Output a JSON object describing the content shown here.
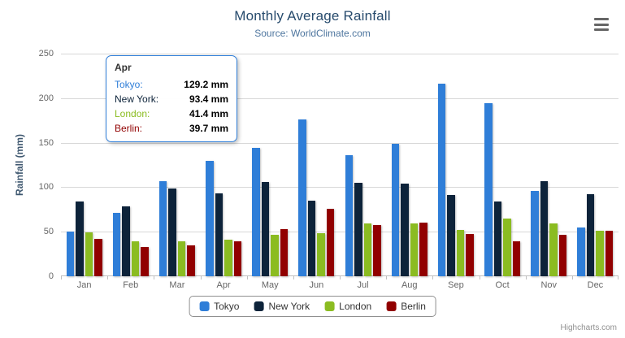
{
  "header": {
    "title": "Monthly Average Rainfall",
    "subtitle": "Source: WorldClimate.com"
  },
  "chart_data": {
    "type": "bar",
    "title": "Monthly Average Rainfall",
    "subtitle": "Source: WorldClimate.com",
    "categories": [
      "Jan",
      "Feb",
      "Mar",
      "Apr",
      "May",
      "Jun",
      "Jul",
      "Aug",
      "Sep",
      "Oct",
      "Nov",
      "Dec"
    ],
    "series": [
      {
        "name": "Tokyo",
        "color": "#2f7ed8",
        "values": [
          49.9,
          71.5,
          106.4,
          129.2,
          144.0,
          176.0,
          135.6,
          148.5,
          216.4,
          194.1,
          95.6,
          54.4
        ]
      },
      {
        "name": "New York",
        "color": "#0d233a",
        "values": [
          83.6,
          78.8,
          98.5,
          93.4,
          106.0,
          84.5,
          105.0,
          104.3,
          91.2,
          83.5,
          106.6,
          92.3
        ]
      },
      {
        "name": "London",
        "color": "#8bbc21",
        "values": [
          48.9,
          38.8,
          39.3,
          41.4,
          47.0,
          48.3,
          59.0,
          59.6,
          52.4,
          65.2,
          59.3,
          51.2
        ]
      },
      {
        "name": "Berlin",
        "color": "#910000",
        "values": [
          42.4,
          33.2,
          34.5,
          39.7,
          52.6,
          75.5,
          57.4,
          60.4,
          47.6,
          39.1,
          46.8,
          51.1
        ]
      }
    ],
    "xlabel": "",
    "ylabel": "Rainfall (mm)",
    "ylim": [
      0,
      250
    ],
    "ytick_interval": 50,
    "grid": true,
    "legend_position": "bottom-center"
  },
  "y_axis": {
    "title": "Rainfall (mm)",
    "tick_labels": [
      "0",
      "50",
      "100",
      "150",
      "200",
      "250"
    ]
  },
  "tooltip": {
    "header": "Apr",
    "border_color": "#2f7ed8",
    "rows": [
      {
        "name": "Tokyo:",
        "value": "129.2 mm",
        "color": "#2f7ed8"
      },
      {
        "name": "New York:",
        "value": "93.4 mm",
        "color": "#0d233a"
      },
      {
        "name": "London:",
        "value": "41.4 mm",
        "color": "#8bbc21"
      },
      {
        "name": "Berlin:",
        "value": "39.7 mm",
        "color": "#910000"
      }
    ]
  },
  "legend": {
    "items": [
      {
        "label": "Tokyo",
        "color": "#2f7ed8"
      },
      {
        "label": "New York",
        "color": "#0d233a"
      },
      {
        "label": "London",
        "color": "#8bbc21"
      },
      {
        "label": "Berlin",
        "color": "#910000"
      }
    ]
  },
  "credits": {
    "label": "Highcharts.com"
  },
  "colors": {
    "title": "#274b6d",
    "subtitle": "#4d759e",
    "axis_labels": "#666666",
    "gridline": "#d8d8d8",
    "legend_border": "#909090"
  }
}
